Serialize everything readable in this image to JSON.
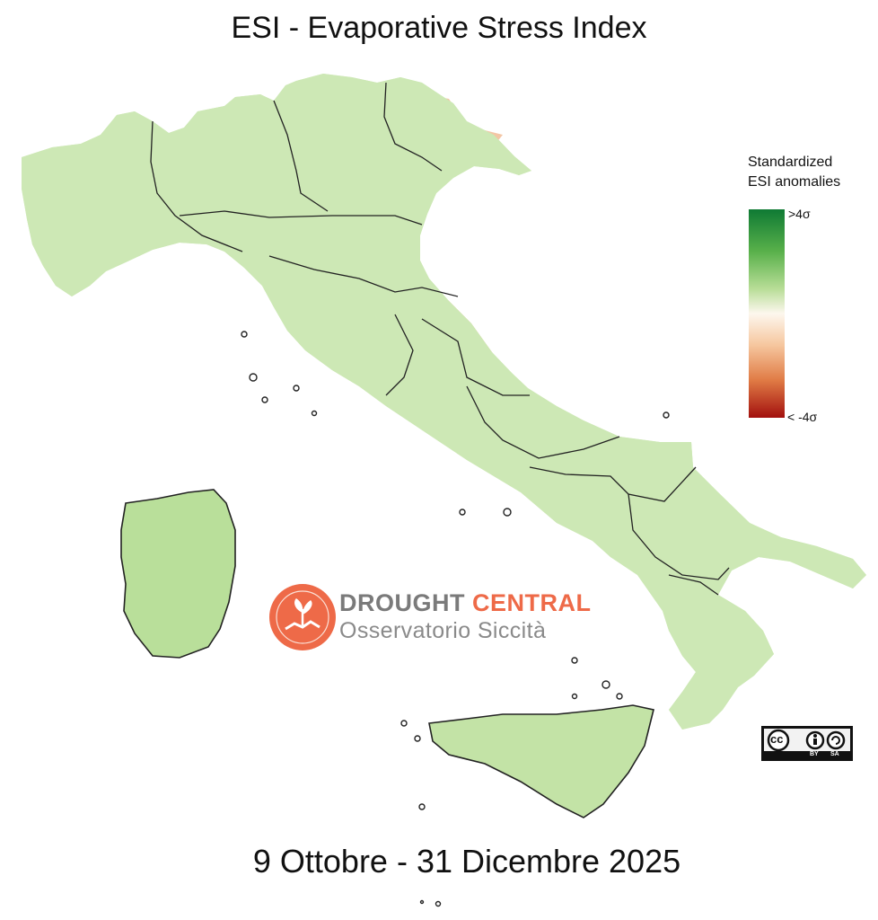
{
  "title": "ESI - Evaporative Stress Index",
  "period": "9 Ottobre - 31 Dicembre 2025",
  "legend": {
    "title_line1": "Standardized",
    "title_line2": "ESI anomalies",
    "max_label": ">4σ",
    "min_label": "< -4σ",
    "colors": [
      "#0f7a34",
      "#58b04a",
      "#b7dd96",
      "#fdf7ee",
      "#f6c79f",
      "#e07b45",
      "#a3100e"
    ]
  },
  "logo": {
    "brand_word1": "DROUGHT",
    "brand_word2": "CENTRAL",
    "brand_sub": "Osservatorio Siccità",
    "accent": "#ee6a48"
  },
  "license": {
    "cc": "cc",
    "by": "BY",
    "sa": "SA"
  }
}
